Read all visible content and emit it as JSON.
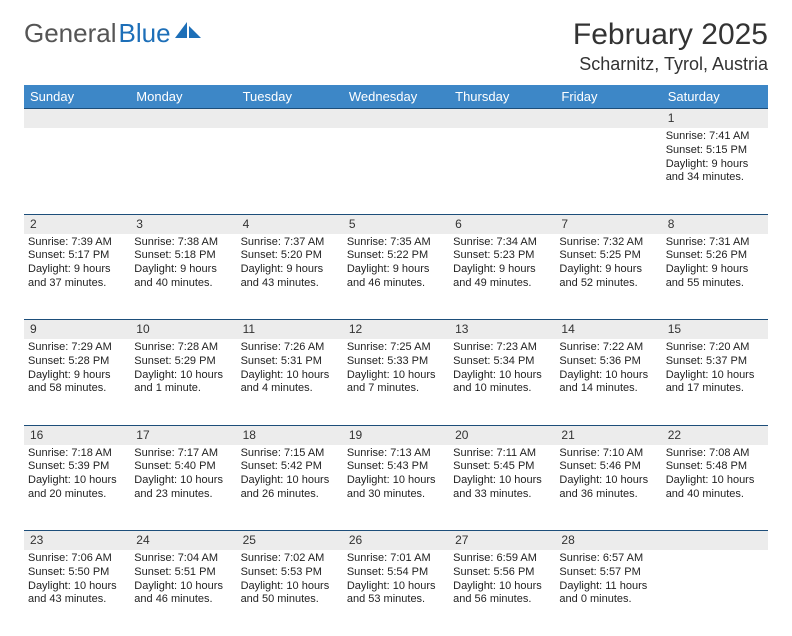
{
  "brand": {
    "part1": "General",
    "part2": "Blue"
  },
  "title": "February 2025",
  "location": "Scharnitz, Tyrol, Austria",
  "colors": {
    "header_bg": "#3d87c7",
    "week_divider": "#1d4e7a",
    "daynum_bg": "#ececec",
    "brand_accent": "#1d6fb8"
  },
  "day_headers": [
    "Sunday",
    "Monday",
    "Tuesday",
    "Wednesday",
    "Thursday",
    "Friday",
    "Saturday"
  ],
  "weeks": [
    [
      {
        "n": "",
        "lines": []
      },
      {
        "n": "",
        "lines": []
      },
      {
        "n": "",
        "lines": []
      },
      {
        "n": "",
        "lines": []
      },
      {
        "n": "",
        "lines": []
      },
      {
        "n": "",
        "lines": []
      },
      {
        "n": "1",
        "lines": [
          "Sunrise: 7:41 AM",
          "Sunset: 5:15 PM",
          "Daylight: 9 hours and 34 minutes."
        ]
      }
    ],
    [
      {
        "n": "2",
        "lines": [
          "Sunrise: 7:39 AM",
          "Sunset: 5:17 PM",
          "Daylight: 9 hours and 37 minutes."
        ]
      },
      {
        "n": "3",
        "lines": [
          "Sunrise: 7:38 AM",
          "Sunset: 5:18 PM",
          "Daylight: 9 hours and 40 minutes."
        ]
      },
      {
        "n": "4",
        "lines": [
          "Sunrise: 7:37 AM",
          "Sunset: 5:20 PM",
          "Daylight: 9 hours and 43 minutes."
        ]
      },
      {
        "n": "5",
        "lines": [
          "Sunrise: 7:35 AM",
          "Sunset: 5:22 PM",
          "Daylight: 9 hours and 46 minutes."
        ]
      },
      {
        "n": "6",
        "lines": [
          "Sunrise: 7:34 AM",
          "Sunset: 5:23 PM",
          "Daylight: 9 hours and 49 minutes."
        ]
      },
      {
        "n": "7",
        "lines": [
          "Sunrise: 7:32 AM",
          "Sunset: 5:25 PM",
          "Daylight: 9 hours and 52 minutes."
        ]
      },
      {
        "n": "8",
        "lines": [
          "Sunrise: 7:31 AM",
          "Sunset: 5:26 PM",
          "Daylight: 9 hours and 55 minutes."
        ]
      }
    ],
    [
      {
        "n": "9",
        "lines": [
          "Sunrise: 7:29 AM",
          "Sunset: 5:28 PM",
          "Daylight: 9 hours and 58 minutes."
        ]
      },
      {
        "n": "10",
        "lines": [
          "Sunrise: 7:28 AM",
          "Sunset: 5:29 PM",
          "Daylight: 10 hours and 1 minute."
        ]
      },
      {
        "n": "11",
        "lines": [
          "Sunrise: 7:26 AM",
          "Sunset: 5:31 PM",
          "Daylight: 10 hours and 4 minutes."
        ]
      },
      {
        "n": "12",
        "lines": [
          "Sunrise: 7:25 AM",
          "Sunset: 5:33 PM",
          "Daylight: 10 hours and 7 minutes."
        ]
      },
      {
        "n": "13",
        "lines": [
          "Sunrise: 7:23 AM",
          "Sunset: 5:34 PM",
          "Daylight: 10 hours and 10 minutes."
        ]
      },
      {
        "n": "14",
        "lines": [
          "Sunrise: 7:22 AM",
          "Sunset: 5:36 PM",
          "Daylight: 10 hours and 14 minutes."
        ]
      },
      {
        "n": "15",
        "lines": [
          "Sunrise: 7:20 AM",
          "Sunset: 5:37 PM",
          "Daylight: 10 hours and 17 minutes."
        ]
      }
    ],
    [
      {
        "n": "16",
        "lines": [
          "Sunrise: 7:18 AM",
          "Sunset: 5:39 PM",
          "Daylight: 10 hours and 20 minutes."
        ]
      },
      {
        "n": "17",
        "lines": [
          "Sunrise: 7:17 AM",
          "Sunset: 5:40 PM",
          "Daylight: 10 hours and 23 minutes."
        ]
      },
      {
        "n": "18",
        "lines": [
          "Sunrise: 7:15 AM",
          "Sunset: 5:42 PM",
          "Daylight: 10 hours and 26 minutes."
        ]
      },
      {
        "n": "19",
        "lines": [
          "Sunrise: 7:13 AM",
          "Sunset: 5:43 PM",
          "Daylight: 10 hours and 30 minutes."
        ]
      },
      {
        "n": "20",
        "lines": [
          "Sunrise: 7:11 AM",
          "Sunset: 5:45 PM",
          "Daylight: 10 hours and 33 minutes."
        ]
      },
      {
        "n": "21",
        "lines": [
          "Sunrise: 7:10 AM",
          "Sunset: 5:46 PM",
          "Daylight: 10 hours and 36 minutes."
        ]
      },
      {
        "n": "22",
        "lines": [
          "Sunrise: 7:08 AM",
          "Sunset: 5:48 PM",
          "Daylight: 10 hours and 40 minutes."
        ]
      }
    ],
    [
      {
        "n": "23",
        "lines": [
          "Sunrise: 7:06 AM",
          "Sunset: 5:50 PM",
          "Daylight: 10 hours and 43 minutes."
        ]
      },
      {
        "n": "24",
        "lines": [
          "Sunrise: 7:04 AM",
          "Sunset: 5:51 PM",
          "Daylight: 10 hours and 46 minutes."
        ]
      },
      {
        "n": "25",
        "lines": [
          "Sunrise: 7:02 AM",
          "Sunset: 5:53 PM",
          "Daylight: 10 hours and 50 minutes."
        ]
      },
      {
        "n": "26",
        "lines": [
          "Sunrise: 7:01 AM",
          "Sunset: 5:54 PM",
          "Daylight: 10 hours and 53 minutes."
        ]
      },
      {
        "n": "27",
        "lines": [
          "Sunrise: 6:59 AM",
          "Sunset: 5:56 PM",
          "Daylight: 10 hours and 56 minutes."
        ]
      },
      {
        "n": "28",
        "lines": [
          "Sunrise: 6:57 AM",
          "Sunset: 5:57 PM",
          "Daylight: 11 hours and 0 minutes."
        ]
      },
      {
        "n": "",
        "lines": []
      }
    ]
  ]
}
